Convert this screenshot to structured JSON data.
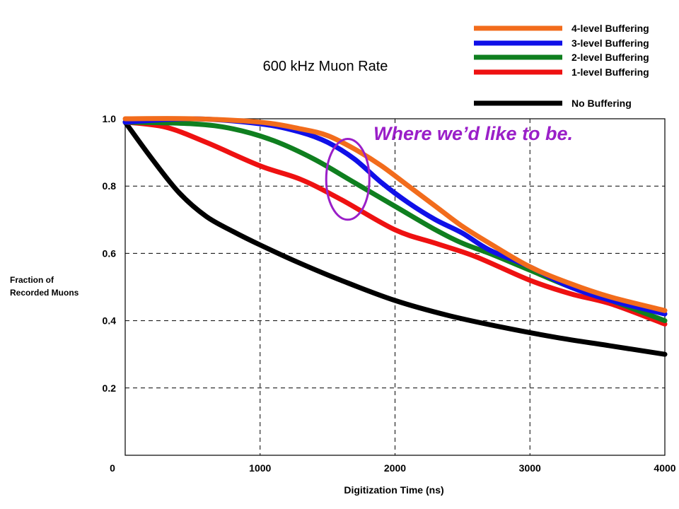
{
  "chart_data": {
    "type": "line",
    "title": "600 kHz Muon Rate",
    "xlabel": "Digitization Time (ns)",
    "ylabel_lines": [
      "Fraction of",
      "Recorded Muons"
    ],
    "xlim": [
      0,
      4000
    ],
    "ylim": [
      0,
      1.0
    ],
    "x_ticks": [
      {
        "value": 1000,
        "label": "1000"
      },
      {
        "value": 2000,
        "label": "2000"
      },
      {
        "value": 3000,
        "label": "3000"
      },
      {
        "value": 4000,
        "label": "4000"
      }
    ],
    "y_ticks": [
      {
        "value": 0,
        "label": "0"
      },
      {
        "value": 0.2,
        "label": "0.2"
      },
      {
        "value": 0.4,
        "label": "0.4"
      },
      {
        "value": 0.6,
        "label": "0.6"
      },
      {
        "value": 0.8,
        "label": "0.8"
      },
      {
        "value": 1.0,
        "label": "1.0"
      }
    ],
    "grid": "dashed",
    "legend_position": "top-right",
    "series": [
      {
        "name": "4-level Buffering",
        "color": "#f26c1c",
        "points": [
          [
            0,
            1.0
          ],
          [
            500,
            1.0
          ],
          [
            1000,
            0.99
          ],
          [
            1300,
            0.97
          ],
          [
            1500,
            0.95
          ],
          [
            1700,
            0.91
          ],
          [
            1900,
            0.86
          ],
          [
            2100,
            0.8
          ],
          [
            2300,
            0.74
          ],
          [
            2500,
            0.68
          ],
          [
            2700,
            0.63
          ],
          [
            3000,
            0.56
          ],
          [
            3300,
            0.51
          ],
          [
            3600,
            0.47
          ],
          [
            4000,
            0.43
          ]
        ]
      },
      {
        "name": "3-level Buffering",
        "color": "#1010e8",
        "points": [
          [
            0,
            0.99
          ],
          [
            500,
            1.0
          ],
          [
            1000,
            0.985
          ],
          [
            1300,
            0.96
          ],
          [
            1500,
            0.93
          ],
          [
            1700,
            0.88
          ],
          [
            1900,
            0.81
          ],
          [
            2100,
            0.75
          ],
          [
            2300,
            0.7
          ],
          [
            2500,
            0.66
          ],
          [
            2700,
            0.61
          ],
          [
            3000,
            0.56
          ],
          [
            3300,
            0.5
          ],
          [
            3600,
            0.46
          ],
          [
            4000,
            0.42
          ]
        ]
      },
      {
        "name": "2-level Buffering",
        "color": "#0f7f1f",
        "points": [
          [
            0,
            0.99
          ],
          [
            500,
            0.985
          ],
          [
            800,
            0.97
          ],
          [
            1100,
            0.935
          ],
          [
            1400,
            0.88
          ],
          [
            1700,
            0.81
          ],
          [
            2000,
            0.74
          ],
          [
            2300,
            0.67
          ],
          [
            2500,
            0.63
          ],
          [
            2700,
            0.6
          ],
          [
            3000,
            0.55
          ],
          [
            3300,
            0.5
          ],
          [
            3600,
            0.46
          ],
          [
            4000,
            0.4
          ]
        ]
      },
      {
        "name": "1-level Buffering",
        "color": "#ee1111",
        "points": [
          [
            0,
            0.99
          ],
          [
            300,
            0.975
          ],
          [
            600,
            0.93
          ],
          [
            1000,
            0.86
          ],
          [
            1300,
            0.82
          ],
          [
            1600,
            0.76
          ],
          [
            2000,
            0.67
          ],
          [
            2300,
            0.63
          ],
          [
            2600,
            0.59
          ],
          [
            3000,
            0.52
          ],
          [
            3300,
            0.48
          ],
          [
            3600,
            0.45
          ],
          [
            4000,
            0.39
          ]
        ]
      },
      {
        "name": "No Buffering",
        "color": "#000000",
        "points": [
          [
            0,
            0.99
          ],
          [
            200,
            0.88
          ],
          [
            400,
            0.78
          ],
          [
            600,
            0.71
          ],
          [
            800,
            0.665
          ],
          [
            1000,
            0.625
          ],
          [
            1300,
            0.57
          ],
          [
            1600,
            0.52
          ],
          [
            2000,
            0.46
          ],
          [
            2400,
            0.415
          ],
          [
            2800,
            0.38
          ],
          [
            3200,
            0.35
          ],
          [
            3600,
            0.325
          ],
          [
            4000,
            0.3
          ]
        ]
      }
    ],
    "annotation": {
      "text": "Where we’d like to be.",
      "color": "#9a1fc8",
      "ellipse_center": [
        1650,
        0.82
      ],
      "ellipse_rx": 160,
      "ellipse_ry": 0.12
    }
  }
}
